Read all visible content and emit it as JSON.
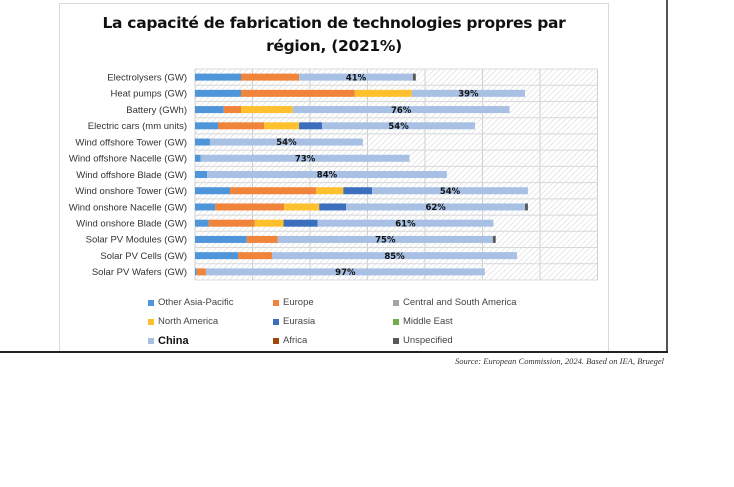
{
  "chart_data": {
    "type": "bar",
    "orientation": "horizontal",
    "stacked": true,
    "title": "La capacité de fabrication de technologies propres par région, (2021%)",
    "title_lines": [
      "La capacité de fabrication de technologies propres par",
      "région, (2021%)"
    ],
    "xlabel": "",
    "ylabel": "",
    "x_axis_units": "relative (gridline intervals; no tick labels shown)",
    "xlim": [
      0,
      7
    ],
    "grid": true,
    "legend_position": "bottom",
    "categories": [
      "Electrolysers (GW)",
      "Heat pumps (GW)",
      "Battery (GWh)",
      "Electric cars (mm units)",
      "Wind offshore Tower (GW)",
      "Wind offshore Nacelle (GW)",
      "Wind offshore Blade (GW)",
      "Wind onshore Tower (GW)",
      "Wind onshore Nacelle (GW)",
      "Wind onshore Blade (GW)",
      "Solar PV Modules (GW)",
      "Solar PV Cells (GW)",
      "Solar PV Wafers (GW)"
    ],
    "china_share_labels": [
      "41%",
      "39%",
      "76%",
      "54%",
      "54%",
      "73%",
      "84%",
      "54%",
      "62%",
      "61%",
      "75%",
      "85%",
      "97%"
    ],
    "series": [
      {
        "name": "Other Asia-Pacific",
        "color": "#4E95D9",
        "values": [
          0.8,
          0.8,
          0.5,
          0.4,
          0.26,
          0.1,
          0.21,
          0.61,
          0.35,
          0.24,
          0.9,
          0.75,
          0.03
        ]
      },
      {
        "name": "Europe",
        "color": "#F0843A",
        "values": [
          1.01,
          1.98,
          0.3,
          0.8,
          0,
          0,
          0,
          1.5,
          1.2,
          0.8,
          0.54,
          0.59,
          0.16
        ]
      },
      {
        "name": "North America",
        "color": "#FFC02E",
        "values": [
          0,
          0.99,
          0.9,
          0.61,
          0,
          0,
          0,
          0.47,
          0.61,
          0.5,
          0,
          0,
          0
        ]
      },
      {
        "name": "Eurasia",
        "color": "#3B6FBE",
        "values": [
          0,
          0,
          0,
          0.4,
          0,
          0,
          0,
          0.5,
          0.47,
          0.59,
          0,
          0,
          0
        ]
      },
      {
        "name": "China",
        "color": "#A8C0E4",
        "values": [
          1.98,
          1.97,
          3.77,
          2.66,
          2.66,
          3.63,
          4.17,
          2.71,
          3.11,
          3.06,
          3.74,
          4.26,
          4.85
        ]
      },
      {
        "name": "Central and South America",
        "color": "#A5A5A5",
        "values": [
          0,
          0,
          0,
          0,
          0,
          0,
          0,
          0,
          0,
          0,
          0,
          0,
          0
        ]
      },
      {
        "name": "Middle East",
        "color": "#70AD47",
        "values": [
          0,
          0,
          0,
          0,
          0,
          0,
          0,
          0,
          0,
          0,
          0,
          0,
          0
        ]
      },
      {
        "name": "Africa",
        "color": "#9E480E",
        "values": [
          0,
          0,
          0,
          0,
          0,
          0,
          0,
          0,
          0,
          0,
          0,
          0,
          0
        ]
      },
      {
        "name": "Unspecified",
        "color": "#595959",
        "values": [
          0.05,
          0,
          0,
          0,
          0,
          0,
          0,
          0,
          0.05,
          0,
          0.05,
          0,
          0
        ]
      }
    ],
    "legend": [
      {
        "name": "Other Asia-Pacific",
        "color": "#4E95D9",
        "bold": false
      },
      {
        "name": "Europe",
        "color": "#F0843A",
        "bold": false
      },
      {
        "name": "Central and South America",
        "color": "#A5A5A5",
        "bold": false
      },
      {
        "name": "North America",
        "color": "#FFC02E",
        "bold": false
      },
      {
        "name": "Eurasia",
        "color": "#3B6FBE",
        "bold": false
      },
      {
        "name": "Middle East",
        "color": "#70AD47",
        "bold": false
      },
      {
        "name": "China",
        "color": "#A8C0E4",
        "bold": true
      },
      {
        "name": "Africa",
        "color": "#9E480E",
        "bold": false
      },
      {
        "name": "Unspecified",
        "color": "#595959",
        "bold": false
      }
    ],
    "label_series": "China"
  },
  "source": "Source: European Commission, 2024. Based on IEA, Bruegel"
}
